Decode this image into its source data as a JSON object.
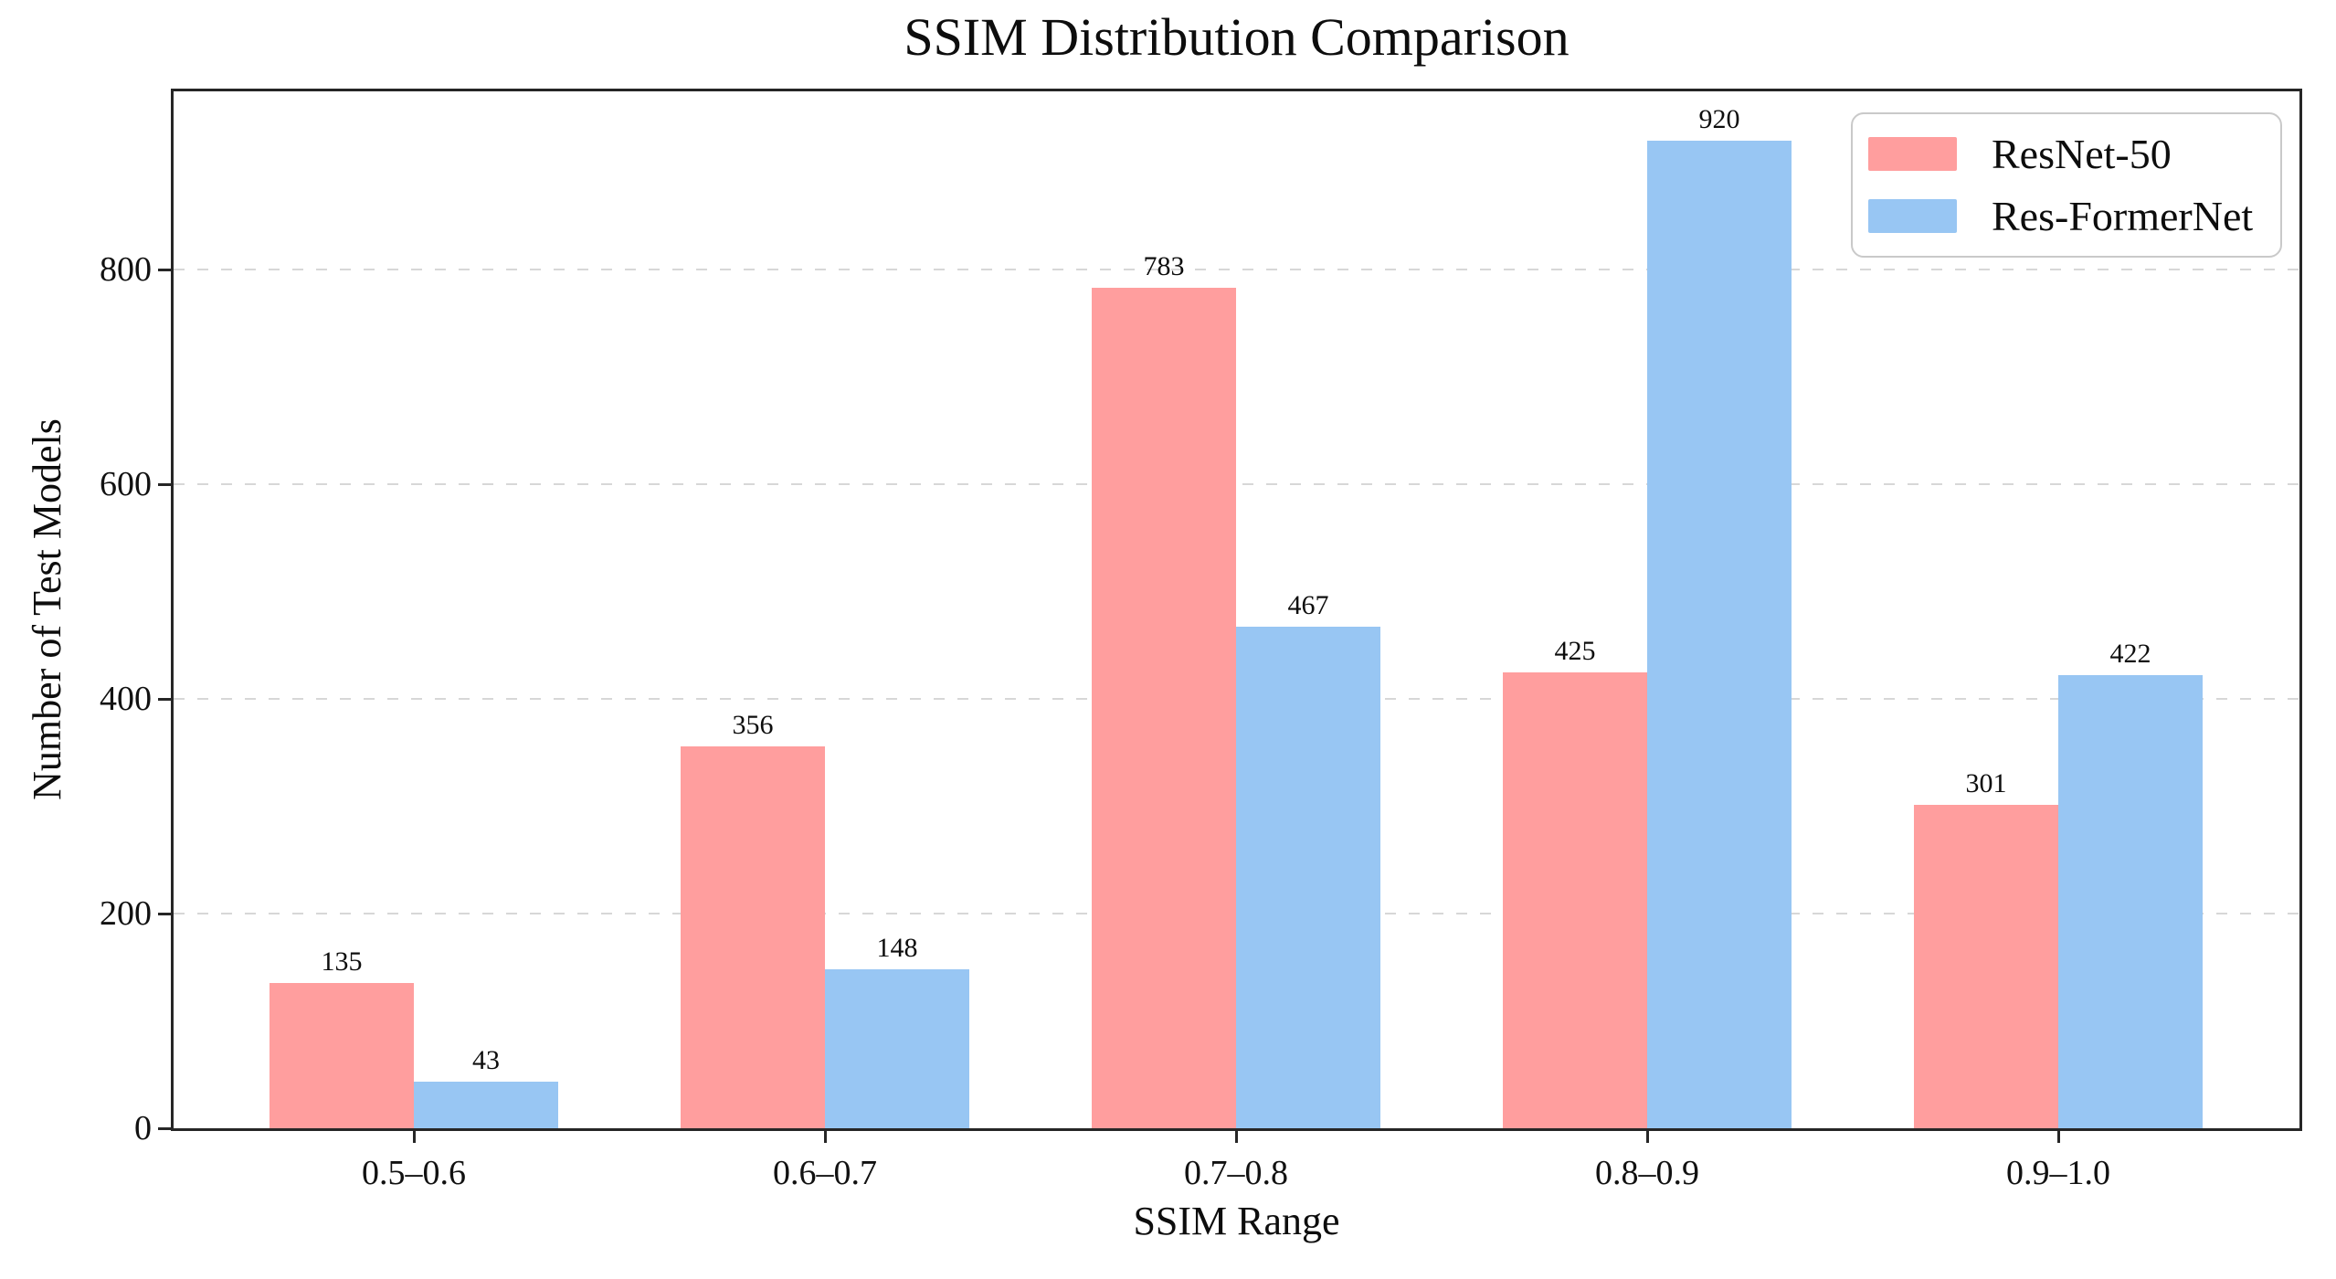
{
  "figure": {
    "title": "SSIM Distribution Comparison"
  },
  "chart_data": {
    "type": "bar",
    "title": "SSIM Distribution Comparison",
    "xlabel": "SSIM Range",
    "ylabel": "Number of Test Models",
    "categories": [
      "0.5–0.6",
      "0.6–0.7",
      "0.7–0.8",
      "0.8–0.9",
      "0.9–1.0"
    ],
    "series": [
      {
        "name": "ResNet-50",
        "color": "#FF9E9E",
        "values": [
          135,
          356,
          783,
          425,
          301
        ]
      },
      {
        "name": "Res-FormerNet",
        "color": "#98C6F3",
        "values": [
          43,
          148,
          467,
          920,
          422
        ]
      }
    ],
    "ylim": [
      0,
      966
    ],
    "yticks": [
      0,
      200,
      400,
      600,
      800
    ],
    "grid": {
      "axis": "y",
      "style": "dashed",
      "color": "#d7d7d7",
      "on_ticks": [
        200,
        400,
        600,
        800
      ]
    },
    "legend": {
      "position": "upper-right",
      "entries": [
        "ResNet-50",
        "Res-FormerNet"
      ]
    },
    "bar_value_labels": true,
    "colors": {
      "spine": "#262626",
      "grid": "#d7d7d7",
      "text": "#111111",
      "background": "#ffffff"
    }
  }
}
